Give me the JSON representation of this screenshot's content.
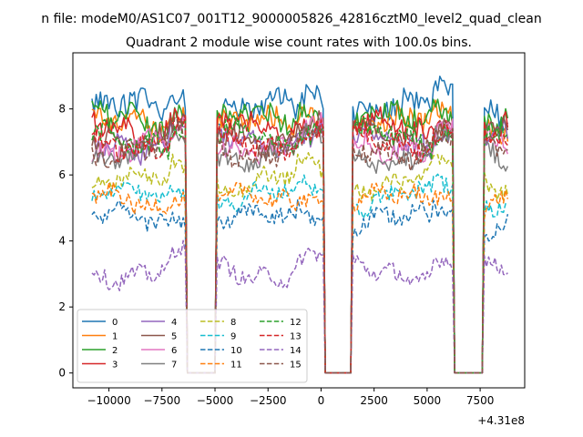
{
  "chart_data": {
    "type": "line",
    "suptitle": "n file: modeM0/AS1C07_001T12_9000005826_42816cztM0_level2_quad_clean",
    "title": "Quadrant 2 module wise count rates with 100.0s bins.",
    "xlabel": "",
    "ylabel": "",
    "x_offset_label": "+4.31e8",
    "xlim": [
      -11700,
      9600
    ],
    "ylim": [
      -0.45,
      9.7
    ],
    "x_ticks": [
      -10000,
      -7500,
      -5000,
      -2500,
      0,
      2500,
      5000,
      7500
    ],
    "x_tick_labels": [
      "−10000",
      "−7500",
      "−5000",
      "−2500",
      "0",
      "2500",
      "5000",
      "7500"
    ],
    "y_ticks": [
      0,
      2,
      4,
      6,
      8
    ],
    "y_tick_labels": [
      "0",
      "2",
      "4",
      "6",
      "8"
    ],
    "x_start": -10800,
    "x_step": 100,
    "x_end": 8800,
    "gaps": [
      [
        -6300,
        -5000
      ],
      [
        200,
        1400
      ],
      [
        6300,
        7600
      ]
    ],
    "legend": {
      "position": "lower-left",
      "columns": 4
    },
    "series": [
      {
        "name": "0",
        "level": 8.0,
        "dashed": false,
        "color": "#1f77b4"
      },
      {
        "name": "1",
        "level": 7.5,
        "dashed": false,
        "color": "#ff7f0e"
      },
      {
        "name": "2",
        "level": 7.7,
        "dashed": false,
        "color": "#2ca02c"
      },
      {
        "name": "3",
        "level": 7.4,
        "dashed": false,
        "color": "#d62728"
      },
      {
        "name": "4",
        "level": 7.0,
        "dashed": false,
        "color": "#9467bd"
      },
      {
        "name": "5",
        "level": 7.2,
        "dashed": false,
        "color": "#8c564b"
      },
      {
        "name": "6",
        "level": 6.9,
        "dashed": false,
        "color": "#e377c2"
      },
      {
        "name": "7",
        "level": 6.6,
        "dashed": false,
        "color": "#7f7f7f"
      },
      {
        "name": "8",
        "level": 5.8,
        "dashed": true,
        "color": "#bcbd22"
      },
      {
        "name": "9",
        "level": 5.3,
        "dashed": true,
        "color": "#17becf"
      },
      {
        "name": "10",
        "level": 4.6,
        "dashed": true,
        "color": "#1f77b4"
      },
      {
        "name": "11",
        "level": 5.2,
        "dashed": true,
        "color": "#ff7f0e"
      },
      {
        "name": "12",
        "level": 7.1,
        "dashed": true,
        "color": "#2ca02c"
      },
      {
        "name": "13",
        "level": 7.0,
        "dashed": true,
        "color": "#d62728"
      },
      {
        "name": "14",
        "level": 3.1,
        "dashed": true,
        "color": "#9467bd"
      },
      {
        "name": "15",
        "level": 6.8,
        "dashed": true,
        "color": "#8c564b"
      }
    ]
  }
}
